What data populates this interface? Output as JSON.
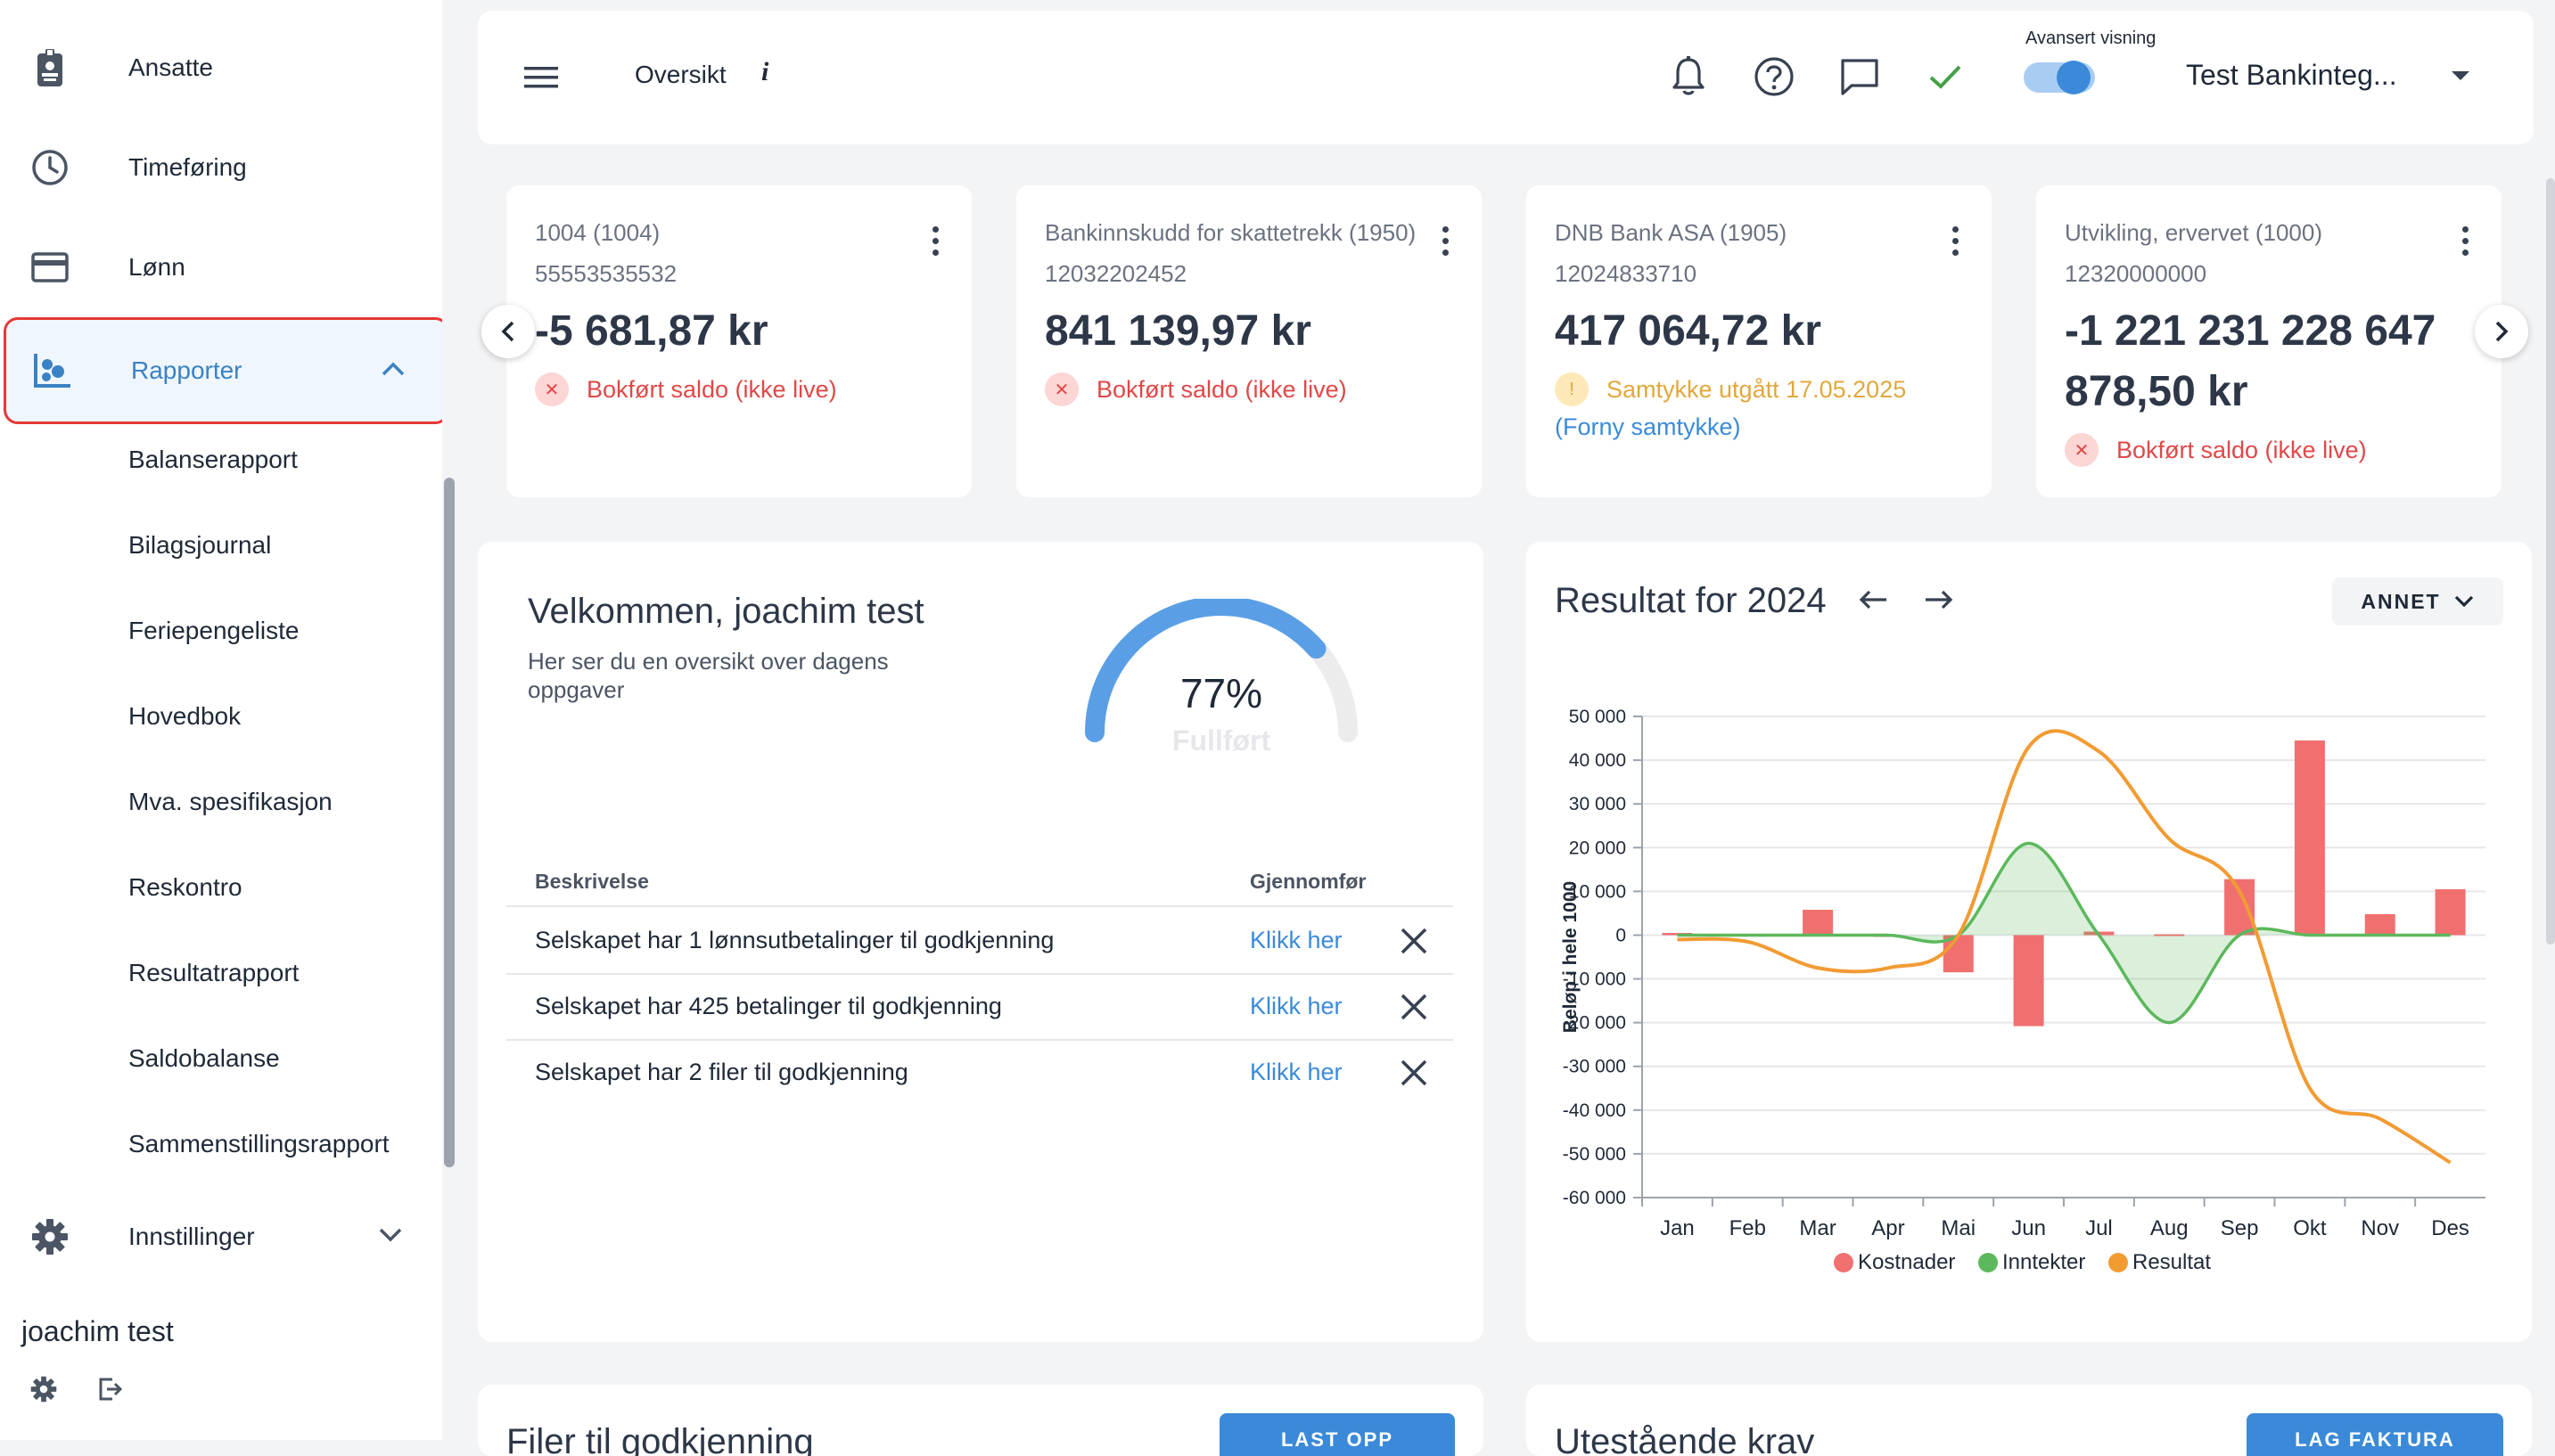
{
  "sidebar": {
    "items": [
      {
        "label": "Ansatte",
        "icon": "id-badge-icon"
      },
      {
        "label": "Timeføring",
        "icon": "clock-icon"
      },
      {
        "label": "Lønn",
        "icon": "credit-card-icon"
      },
      {
        "label": "Rapporter",
        "icon": "reports-icon"
      }
    ],
    "sub_items": [
      "Balanserapport",
      "Bilagsjournal",
      "Feriepengeliste",
      "Hovedbok",
      "Mva. spesifikasjon",
      "Reskontro",
      "Resultatrapport",
      "Saldobalanse",
      "Sammenstillingsrapport"
    ],
    "settings_label": "Innstillinger",
    "user_name": "joachim test"
  },
  "header": {
    "title": "Oversikt",
    "info_glyph": "i",
    "advanced_view_label": "Avansert visning",
    "advanced_view_on": true,
    "company": "Test Bankinteg..."
  },
  "accounts": [
    {
      "name": "1004 (1004)",
      "number": "55553535532",
      "amount": "-5 681,87 kr",
      "status": "Bokført saldo (ikke live)",
      "status_type": "error"
    },
    {
      "name": "Bankinnskudd for skattetrekk (1950)",
      "number": "12032202452",
      "amount": "841 139,97 kr",
      "status": "Bokført saldo (ikke live)",
      "status_type": "error"
    },
    {
      "name": "DNB Bank ASA (1905)",
      "number": "12024833710",
      "amount": "417 064,72 kr",
      "status": "Samtykke utgått 17.05.2025",
      "status_link": "(Forny samtykke)",
      "status_type": "warning"
    },
    {
      "name": "Utvikling, ervervet (1000)",
      "number": "12320000000",
      "amount": "-1 221 231 228 647 878,50 kr",
      "status": "Bokført saldo (ikke live)",
      "status_type": "error"
    }
  ],
  "welcome": {
    "title": "Velkommen, joachim test",
    "subtitle": "Her ser du en oversikt over dagens oppgaver",
    "progress_percent": 77,
    "progress_text": "77%",
    "progress_label": "Fullført",
    "table": {
      "headers": [
        "Beskrivelse",
        "Gjennomfør"
      ],
      "rows": [
        {
          "desc": "Selskapet har 1 lønnsutbetalinger til godkjenning",
          "action": "Klikk her"
        },
        {
          "desc": "Selskapet har 425 betalinger til godkjenning",
          "action": "Klikk her"
        },
        {
          "desc": "Selskapet har 2 filer til godkjenning",
          "action": "Klikk her"
        }
      ]
    }
  },
  "chart_section": {
    "title": "Resultat for 2024",
    "filter_label": "ANNET",
    "legend": [
      "Kostnader",
      "Inntekter",
      "Resultat"
    ]
  },
  "chart_data": {
    "type": "bar",
    "ylabel": "Beløp i hele 1000",
    "ylim": [
      -60000,
      50000
    ],
    "yticks": [
      "50 000",
      "40 000",
      "30 000",
      "20 000",
      "10 000",
      "0",
      "-10 000",
      "-20 000",
      "-30 000",
      "-40 000",
      "-50 000",
      "-60 000"
    ],
    "categories": [
      "Jan",
      "Feb",
      "Mar",
      "Apr",
      "Mai",
      "Jun",
      "Jul",
      "Aug",
      "Sep",
      "Okt",
      "Nov",
      "Des"
    ],
    "series": [
      {
        "name": "Kostnader",
        "type": "bar",
        "color": "#f07070",
        "values": [
          500,
          300,
          5800,
          0,
          -8500,
          -20800,
          800,
          200,
          12800,
          44500,
          4800,
          10500
        ]
      },
      {
        "name": "Inntekter",
        "type": "area",
        "color": "#5cb85c",
        "values": [
          0,
          0,
          0,
          0,
          0,
          21000,
          0,
          -20000,
          0,
          0,
          0,
          0
        ]
      },
      {
        "name": "Resultat",
        "type": "line",
        "color": "#f29b33",
        "values": [
          -1000,
          -1500,
          -7500,
          -7500,
          0,
          43000,
          42000,
          22000,
          10000,
          -35000,
          -42000,
          -52000
        ]
      }
    ],
    "legend_position": "bottom",
    "grid": true
  },
  "bottom": {
    "left_title": "Filer til godkjenning",
    "left_button": "LAST OPP",
    "right_title": "Utestående krav",
    "right_button": "LAG FAKTURA"
  },
  "colors": {
    "accent": "#3b8ad9",
    "error": "#e04848",
    "warning": "#e0a83e",
    "highlight_border": "#e53935"
  }
}
